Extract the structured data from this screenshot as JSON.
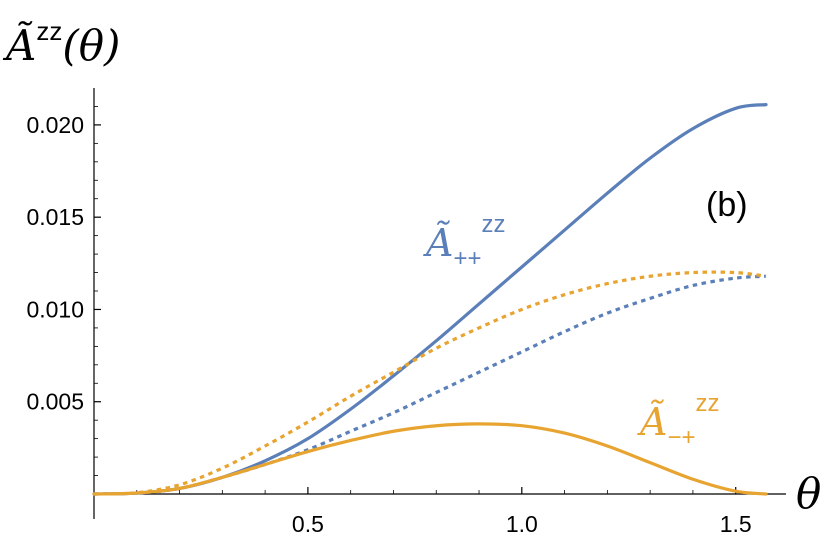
{
  "chart_data": {
    "type": "line",
    "ylabel": "Ã^zz(θ)",
    "xlabel": "θ",
    "panel_label": "(b)",
    "xlim": [
      0,
      1.5708
    ],
    "ylim": [
      0,
      0.022
    ],
    "x_ticks": [
      {
        "value": 0.5,
        "label": "0.5"
      },
      {
        "value": 1.0,
        "label": "1.0"
      },
      {
        "value": 1.5,
        "label": "1.5"
      }
    ],
    "y_ticks": [
      {
        "value": 0.005,
        "label": "0.005"
      },
      {
        "value": 0.01,
        "label": "0.010"
      },
      {
        "value": 0.015,
        "label": "0.015"
      },
      {
        "value": 0.02,
        "label": "0.020"
      }
    ],
    "grid": false,
    "series": [
      {
        "label": "Ã++zz",
        "color": "#5b7fb8",
        "style": "solid",
        "x": [
          0,
          0.1,
          0.2,
          0.3,
          0.4,
          0.5,
          0.6,
          0.7,
          0.8,
          0.9,
          1.0,
          1.1,
          1.2,
          1.3,
          1.4,
          1.5,
          1.5708
        ],
        "y": [
          0,
          5e-05,
          0.0003,
          0.0009,
          0.0018,
          0.003,
          0.0046,
          0.0064,
          0.0083,
          0.0103,
          0.0123,
          0.0143,
          0.0163,
          0.0182,
          0.0198,
          0.0209,
          0.0211
        ]
      },
      {
        "color": "#5b7fb8",
        "style": "dotted",
        "x": [
          0,
          0.1,
          0.2,
          0.3,
          0.4,
          0.5,
          0.6,
          0.7,
          0.8,
          0.9,
          1.0,
          1.1,
          1.2,
          1.3,
          1.4,
          1.5,
          1.5708
        ],
        "y": [
          0,
          5e-05,
          0.0003,
          0.0009,
          0.0016,
          0.0024,
          0.0034,
          0.0044,
          0.0055,
          0.0066,
          0.0077,
          0.0088,
          0.0098,
          0.0106,
          0.0113,
          0.0117,
          0.0118
        ]
      },
      {
        "color": "#e8a431",
        "style": "dotted",
        "x": [
          0,
          0.1,
          0.2,
          0.3,
          0.4,
          0.5,
          0.6,
          0.7,
          0.8,
          0.9,
          1.0,
          1.1,
          1.2,
          1.3,
          1.4,
          1.5,
          1.5708
        ],
        "y": [
          0,
          7e-05,
          0.0005,
          0.0014,
          0.0026,
          0.0039,
          0.0053,
          0.0066,
          0.0079,
          0.009,
          0.01,
          0.0108,
          0.0114,
          0.0118,
          0.012,
          0.012,
          0.0118
        ]
      },
      {
        "label": "Ã−+zz",
        "color": "#e8a431",
        "style": "solid",
        "x": [
          0,
          0.1,
          0.2,
          0.3,
          0.4,
          0.5,
          0.6,
          0.7,
          0.8,
          0.9,
          1.0,
          1.1,
          1.2,
          1.3,
          1.4,
          1.5,
          1.5708
        ],
        "y": [
          0,
          5e-05,
          0.0003,
          0.0009,
          0.0016,
          0.0023,
          0.0029,
          0.0034,
          0.0037,
          0.0038,
          0.0037,
          0.0033,
          0.0026,
          0.0017,
          0.0008,
          0.00015,
          0
        ]
      }
    ]
  }
}
